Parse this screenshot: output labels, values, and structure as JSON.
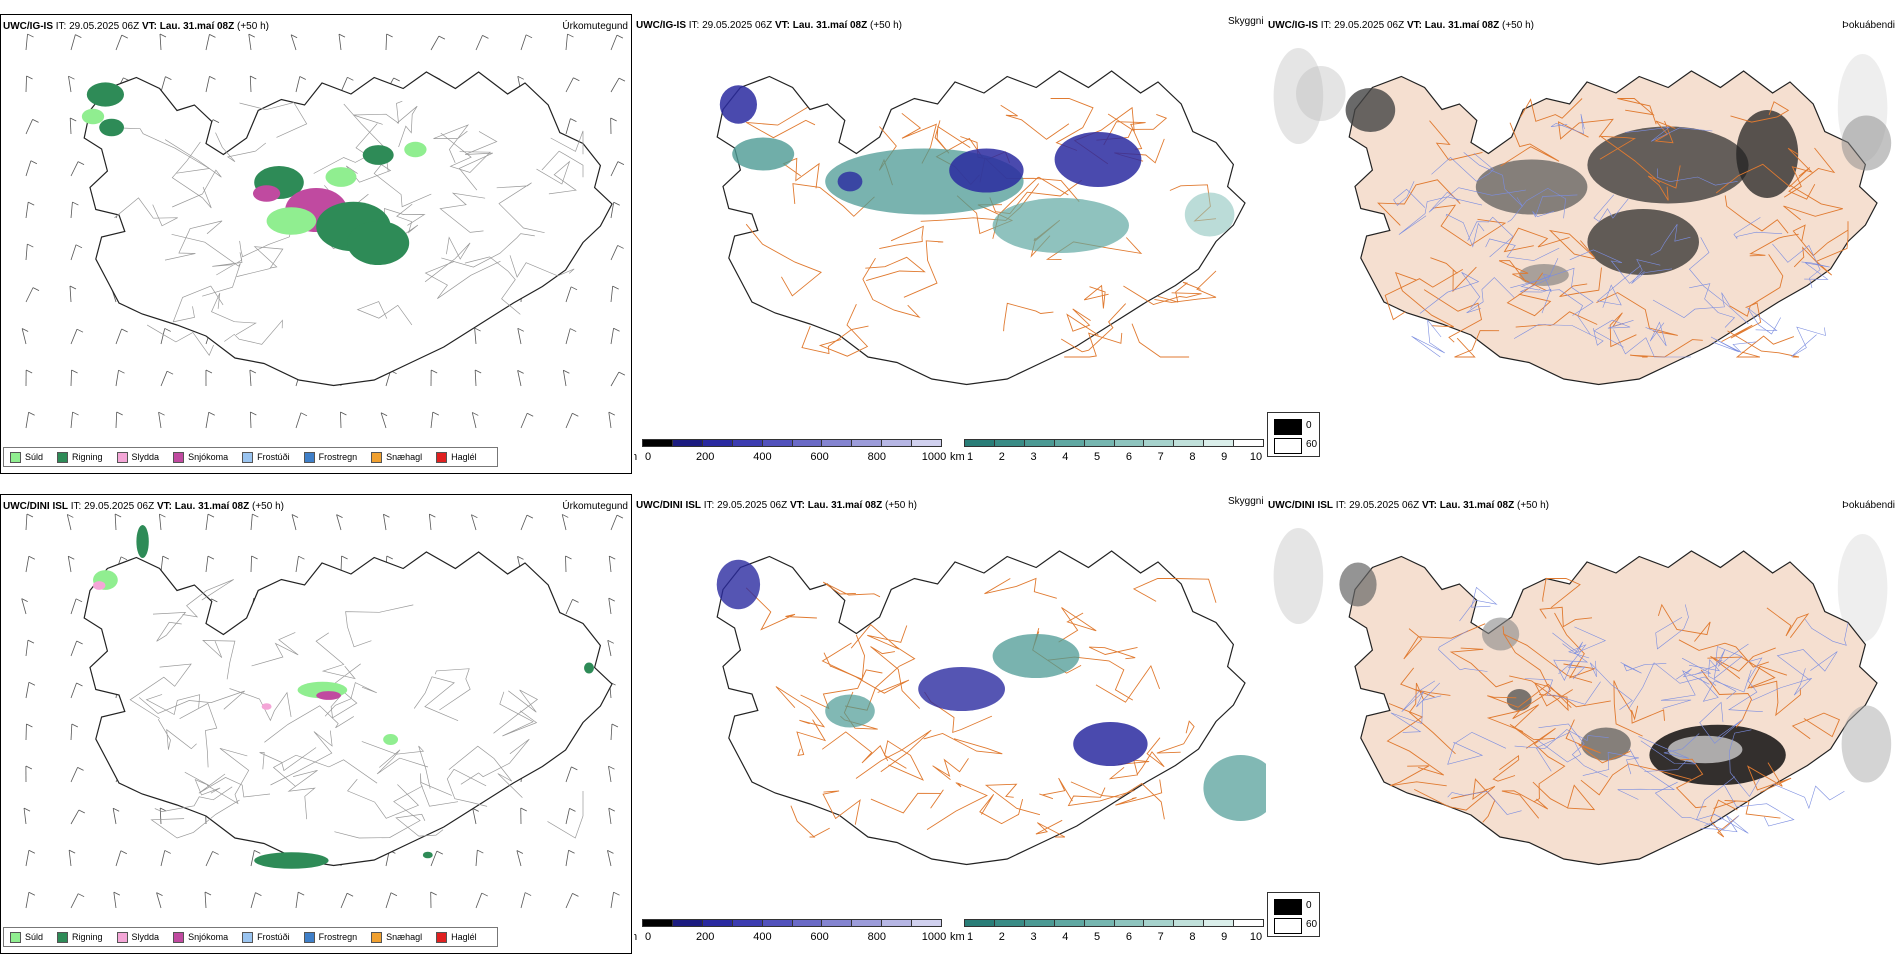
{
  "rows": [
    {
      "precip_panel": {
        "model": "UWC/IG-IS",
        "it_label": "IT:",
        "it_value": "29.05.2025 06Z",
        "vt_label": "VT:",
        "vt_value": "Lau. 31.maí 08Z",
        "lead": "(+50 h)",
        "title": "Úrkomutegund"
      },
      "vis_panel": {
        "model": "UWC/IG-IS",
        "it_label": "IT:",
        "it_value": "29.05.2025 06Z",
        "vt_label": "VT:",
        "vt_value": "Lau. 31.maí 08Z",
        "lead": "(+50 h)",
        "title": "Skyggni"
      },
      "fog_panel": {
        "model": "UWC/IG-IS",
        "it_label": "IT:",
        "it_value": "29.05.2025 06Z",
        "vt_label": "VT:",
        "vt_value": "Lau. 31.maí 08Z",
        "lead": "(+50 h)",
        "title": "Þokuábendi"
      }
    },
    {
      "precip_panel": {
        "model": "UWC/DINI ISL",
        "it_label": "IT:",
        "it_value": "29.05.2025 06Z",
        "vt_label": "VT:",
        "vt_value": "Lau. 31.maí 08Z",
        "lead": "(+50 h)",
        "title": "Úrkomutegund"
      },
      "vis_panel": {
        "model": "UWC/DINI ISL",
        "it_label": "IT:",
        "it_value": "29.05.2025 06Z",
        "vt_label": "VT:",
        "vt_value": "Lau. 31.maí 08Z",
        "lead": "(+50 h)",
        "title": "Skyggni"
      },
      "fog_panel": {
        "model": "UWC/DINI ISL",
        "it_label": "IT:",
        "it_value": "29.05.2025 06Z",
        "vt_label": "VT:",
        "vt_value": "Lau. 31.maí 08Z",
        "lead": "(+50 h)",
        "title": "Þokuábendi"
      }
    }
  ],
  "precip_legend": [
    {
      "label": "Súld",
      "color": "#90ee90"
    },
    {
      "label": "Rigning",
      "color": "#2e8b57"
    },
    {
      "label": "Slydda",
      "color": "#f4a6d7"
    },
    {
      "label": "Snjókoma",
      "color": "#c04aa0"
    },
    {
      "label": "Frostúði",
      "color": "#9ac4f0"
    },
    {
      "label": "Frostregn",
      "color": "#3f7fc8"
    },
    {
      "label": "Snæhagl",
      "color": "#f0a030"
    },
    {
      "label": "Haglél",
      "color": "#e02020"
    }
  ],
  "cloud_base_bar": {
    "unit": "m",
    "ticks": [
      "0",
      "200",
      "400",
      "600",
      "800",
      "1000"
    ],
    "colors": [
      "#000000",
      "#1c1c80",
      "#2a2aa0",
      "#3c3cb0",
      "#5252bc",
      "#6a6ac6",
      "#8484d0",
      "#9c9cda",
      "#b6b6e4",
      "#d0d0ee"
    ]
  },
  "visibility_bar": {
    "unit": "km",
    "ticks": [
      "1",
      "2",
      "3",
      "4",
      "5",
      "6",
      "7",
      "8",
      "9",
      "10"
    ],
    "colors": [
      "#2a7e78",
      "#3a8c86",
      "#4c9a94",
      "#60a8a2",
      "#76b6b0",
      "#8ec4be",
      "#a6d2cc",
      "#c0e0da",
      "#daeeea",
      "#ffffff"
    ]
  },
  "fog_legend": {
    "high": "0",
    "low": "60"
  },
  "map_colors": {
    "coast": "#222222",
    "roads": "#e07a30",
    "rivers": "#7b8de0",
    "land_fog": "#f5dfd0",
    "wind": "#555555"
  }
}
